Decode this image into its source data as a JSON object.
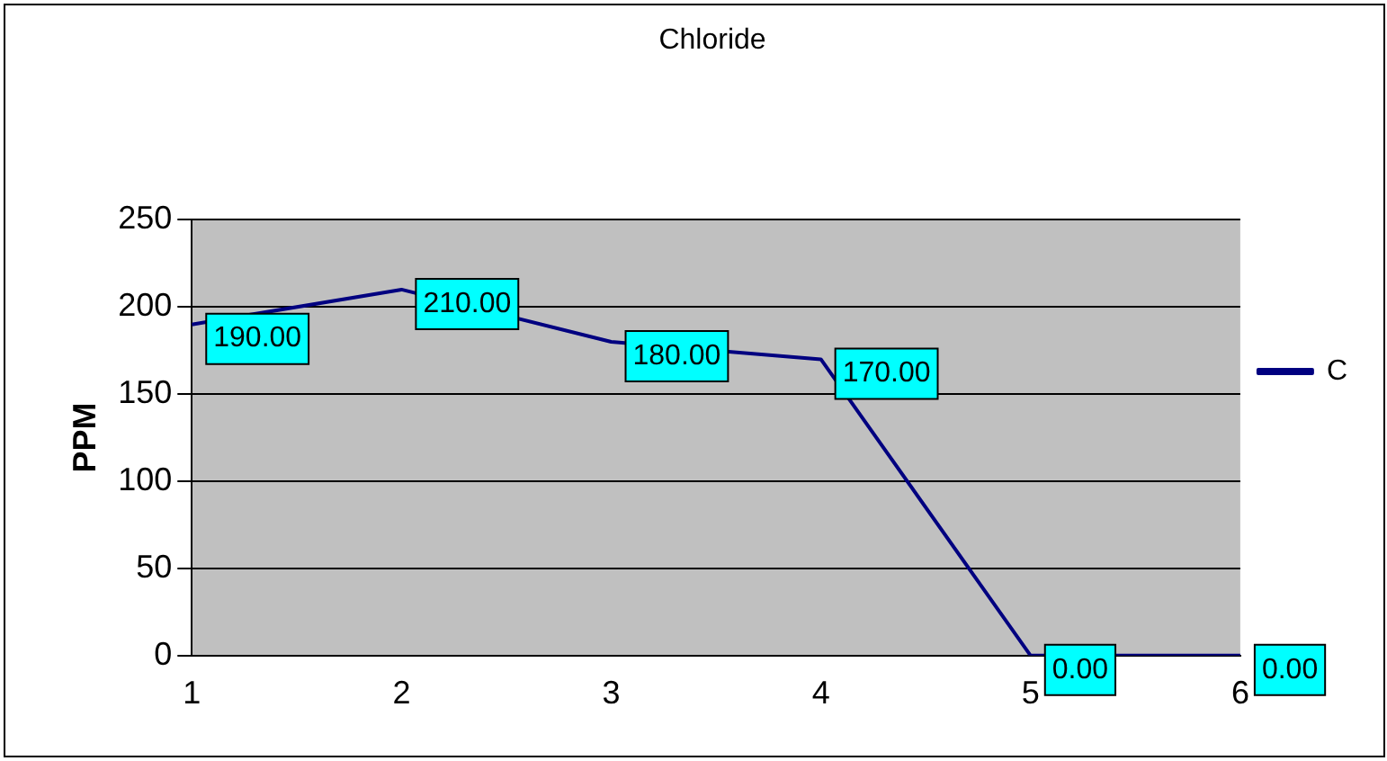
{
  "chart_data": {
    "type": "line",
    "title": "Chloride",
    "ylabel": "PPM",
    "categories": [
      "1",
      "2",
      "3",
      "4",
      "5",
      "6"
    ],
    "series": [
      {
        "name": "C",
        "color": "#000080",
        "values": [
          190,
          210,
          180,
          170,
          0,
          0
        ],
        "value_labels": [
          "190.00",
          "210.00",
          "180.00",
          "170.00",
          "0.00",
          "0.00"
        ]
      }
    ],
    "ylim": [
      0,
      250
    ],
    "yticks": [
      0,
      50,
      100,
      150,
      200,
      250
    ],
    "grid": "y",
    "legend": "right",
    "marker": "none",
    "line_style": "solid"
  }
}
